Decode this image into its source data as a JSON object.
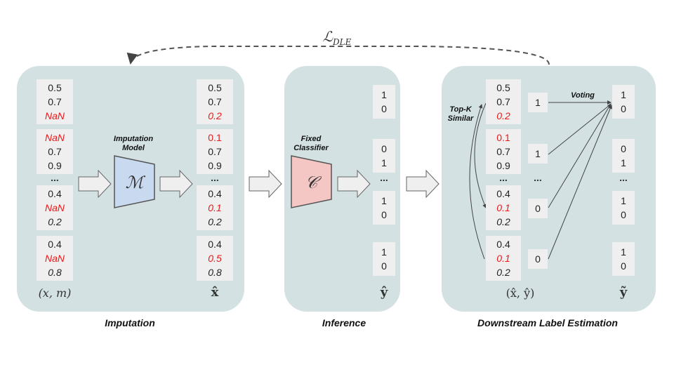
{
  "loss_label": "ℒ",
  "loss_sub": "DLE",
  "imputation": {
    "caption": "Imputation",
    "model_label_line1": "Imputation",
    "model_label_line2": "Model",
    "model_symbol": "ℳ",
    "input_math": "(x, m)",
    "output_math": "x̂",
    "input_cells": [
      [
        "0.5",
        "0.7",
        "NaN"
      ],
      [
        "NaN",
        "0.7",
        "0.9"
      ],
      [
        "0.4",
        "NaN",
        "0.2"
      ],
      [
        "0.4",
        "NaN",
        "0.8"
      ]
    ],
    "output_cells": [
      [
        "0.5",
        "0.7",
        "0.2"
      ],
      [
        "0.1",
        "0.7",
        "0.9"
      ],
      [
        "0.4",
        "0.1",
        "0.2"
      ],
      [
        "0.4",
        "0.5",
        "0.8"
      ]
    ],
    "ellipsis": "..."
  },
  "inference": {
    "caption": "Inference",
    "classifier_label_line1": "Fixed",
    "classifier_label_line2": "Classifier",
    "classifier_symbol": "𝒞",
    "output_math": "ŷ",
    "output_cells": [
      [
        "1",
        "0"
      ],
      [
        "0",
        "1"
      ],
      [
        "1",
        "0"
      ],
      [
        "1",
        "0"
      ]
    ],
    "ellipsis": "..."
  },
  "estimation": {
    "caption": "Downstream Label Estimation",
    "topk_line1": "Top-K",
    "topk_line2": "Similar",
    "voting": "Voting",
    "pair_math": "(x̂, ŷ)",
    "result_math": "ỹ",
    "x_cells": [
      [
        "0.5",
        "0.7",
        "0.2"
      ],
      [
        "0.1",
        "0.7",
        "0.9"
      ],
      [
        "0.4",
        "0.1",
        "0.2"
      ],
      [
        "0.4",
        "0.1",
        "0.2"
      ]
    ],
    "y_cells": [
      "1",
      "1",
      "0",
      "0"
    ],
    "result_cells": [
      [
        "1",
        "0"
      ],
      [
        "0",
        "1"
      ],
      [
        "1",
        "0"
      ],
      [
        "1",
        "0"
      ]
    ],
    "ellipsis": "..."
  },
  "colors": {
    "panel": "#d3e1e3",
    "cell": "#efefef",
    "red": "#e8191b",
    "model": "#c8d9f0",
    "classifier": "#f4c7c5"
  }
}
